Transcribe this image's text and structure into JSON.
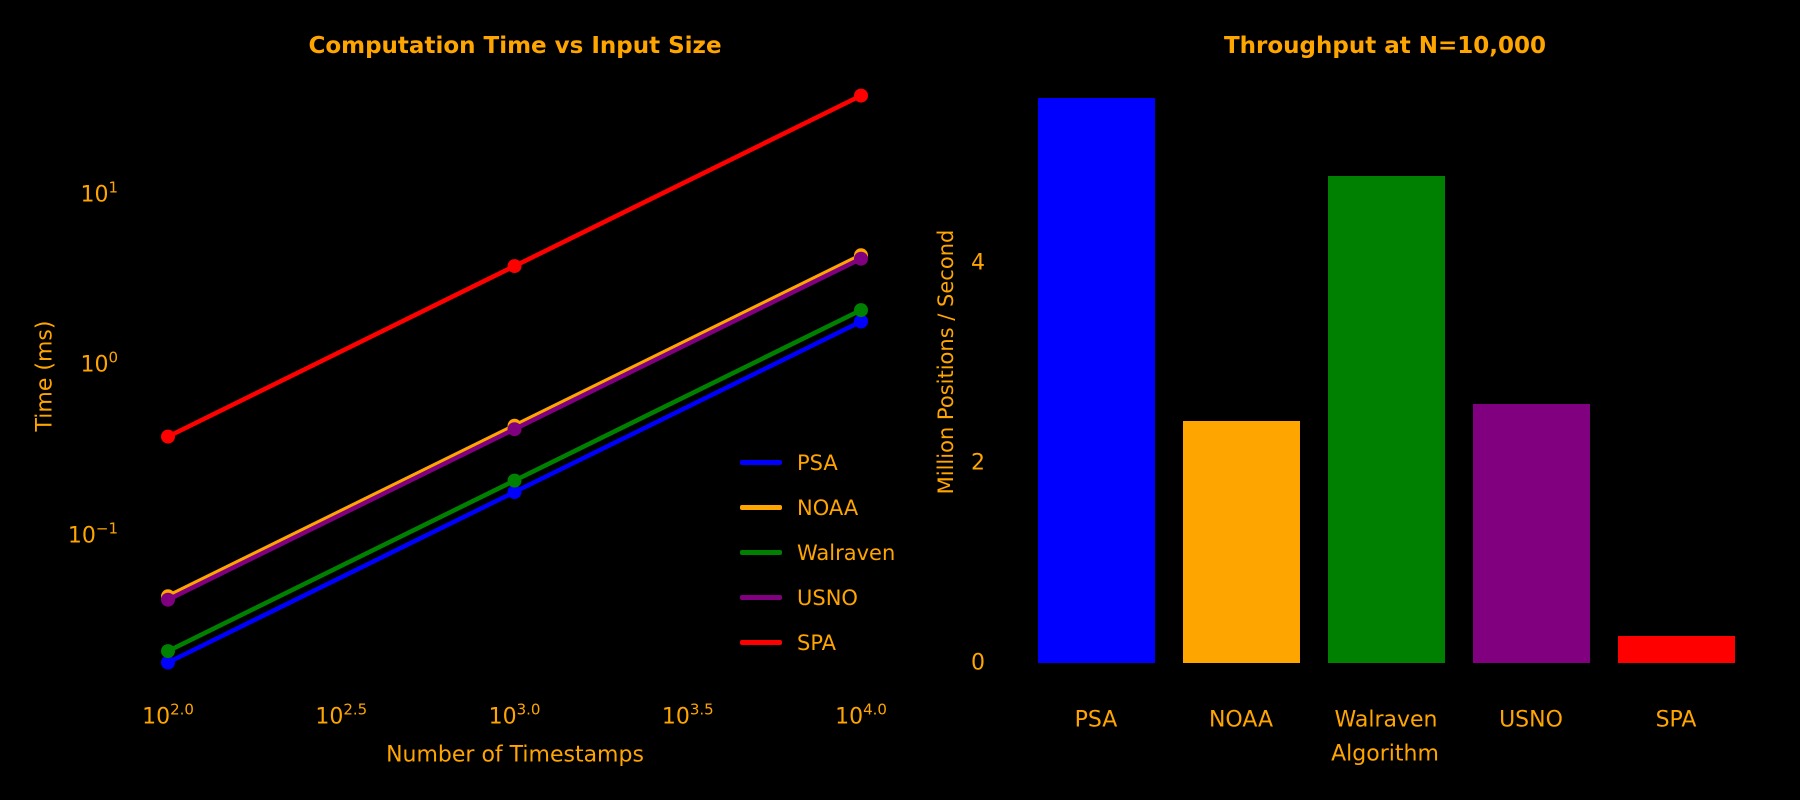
{
  "figure": {
    "background": "#000000",
    "text_color": "#FFA500"
  },
  "chart_data": [
    {
      "type": "line",
      "title": "Computation Time vs Input Size",
      "xlabel": "Number of Timestamps",
      "ylabel": "Time (ms)",
      "xscale": "log",
      "yscale": "log",
      "xlim_log": [
        2.0,
        4.0
      ],
      "ylim_log": [
        -1.9,
        1.8
      ],
      "grid": false,
      "legend_position": "lower right",
      "x": [
        100,
        1000,
        10000
      ],
      "series": [
        {
          "name": "PSA",
          "color": "#0000FF",
          "values": [
            0.018,
            0.18,
            1.8
          ]
        },
        {
          "name": "NOAA",
          "color": "#FFA500",
          "values": [
            0.044,
            0.44,
            4.4
          ]
        },
        {
          "name": "Walraven",
          "color": "#008000",
          "values": [
            0.021,
            0.21,
            2.1
          ]
        },
        {
          "name": "USNO",
          "color": "#800080",
          "values": [
            0.042,
            0.42,
            4.2
          ]
        },
        {
          "name": "SPA",
          "color": "#FF0000",
          "values": [
            0.38,
            3.8,
            38
          ]
        }
      ],
      "x_ticks": [
        {
          "base": "10",
          "exp": "2.0",
          "log": 2.0
        },
        {
          "base": "10",
          "exp": "2.5",
          "log": 2.5
        },
        {
          "base": "10",
          "exp": "3.0",
          "log": 3.0
        },
        {
          "base": "10",
          "exp": "3.5",
          "log": 3.5
        },
        {
          "base": "10",
          "exp": "4.0",
          "log": 4.0
        }
      ],
      "y_ticks": [
        {
          "base": "10",
          "exp": "1",
          "log": 1
        },
        {
          "base": "10",
          "exp": "0",
          "log": 0
        },
        {
          "base": "10",
          "exp": "−1",
          "log": -1
        }
      ]
    },
    {
      "type": "bar",
      "title": "Throughput at N=10,000",
      "xlabel": "Algorithm",
      "ylabel": "Million Positions / Second",
      "grid": false,
      "categories": [
        "PSA",
        "NOAA",
        "Walraven",
        "USNO",
        "SPA"
      ],
      "values": [
        5.65,
        2.42,
        4.87,
        2.59,
        0.27
      ],
      "colors": [
        "#0000FF",
        "#FFA500",
        "#008000",
        "#800080",
        "#FF0000"
      ],
      "y_ticks": [
        {
          "label": "0",
          "value": 0
        },
        {
          "label": "2",
          "value": 2
        },
        {
          "label": "4",
          "value": 4
        }
      ],
      "ylim": [
        0,
        6.0
      ]
    }
  ]
}
